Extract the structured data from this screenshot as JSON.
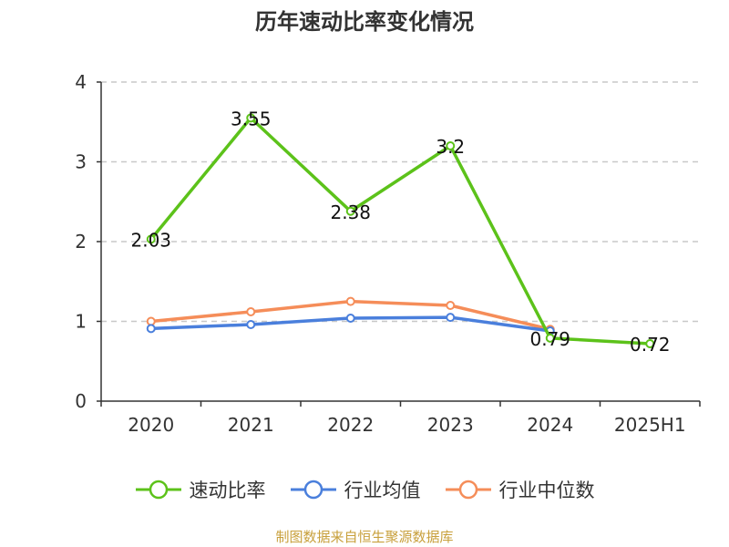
{
  "title": "历年速动比率变化情况",
  "source": "制图数据来自恒生聚源数据库",
  "chart_data": {
    "type": "line",
    "title": "历年速动比率变化情况",
    "categories": [
      "2020",
      "2021",
      "2022",
      "2023",
      "2024",
      "2025H1"
    ],
    "ylim": [
      0,
      4
    ],
    "yticks": [
      0,
      1,
      2,
      3,
      4
    ],
    "grid": true,
    "legend_position": "bottom",
    "series": [
      {
        "name": "速动比率",
        "color": "#5cc21a",
        "values": [
          2.03,
          3.55,
          2.38,
          3.2,
          0.79,
          0.72
        ],
        "labels": [
          "2.03",
          "3.55",
          "2.38",
          "3.2",
          "0.79",
          "0.72"
        ]
      },
      {
        "name": "行业均值",
        "color": "#4a7fdc",
        "values": [
          0.91,
          0.96,
          1.04,
          1.05,
          0.88,
          null
        ]
      },
      {
        "name": "行业中位数",
        "color": "#f58d59",
        "values": [
          1.0,
          1.12,
          1.25,
          1.2,
          0.9,
          null
        ]
      }
    ]
  }
}
